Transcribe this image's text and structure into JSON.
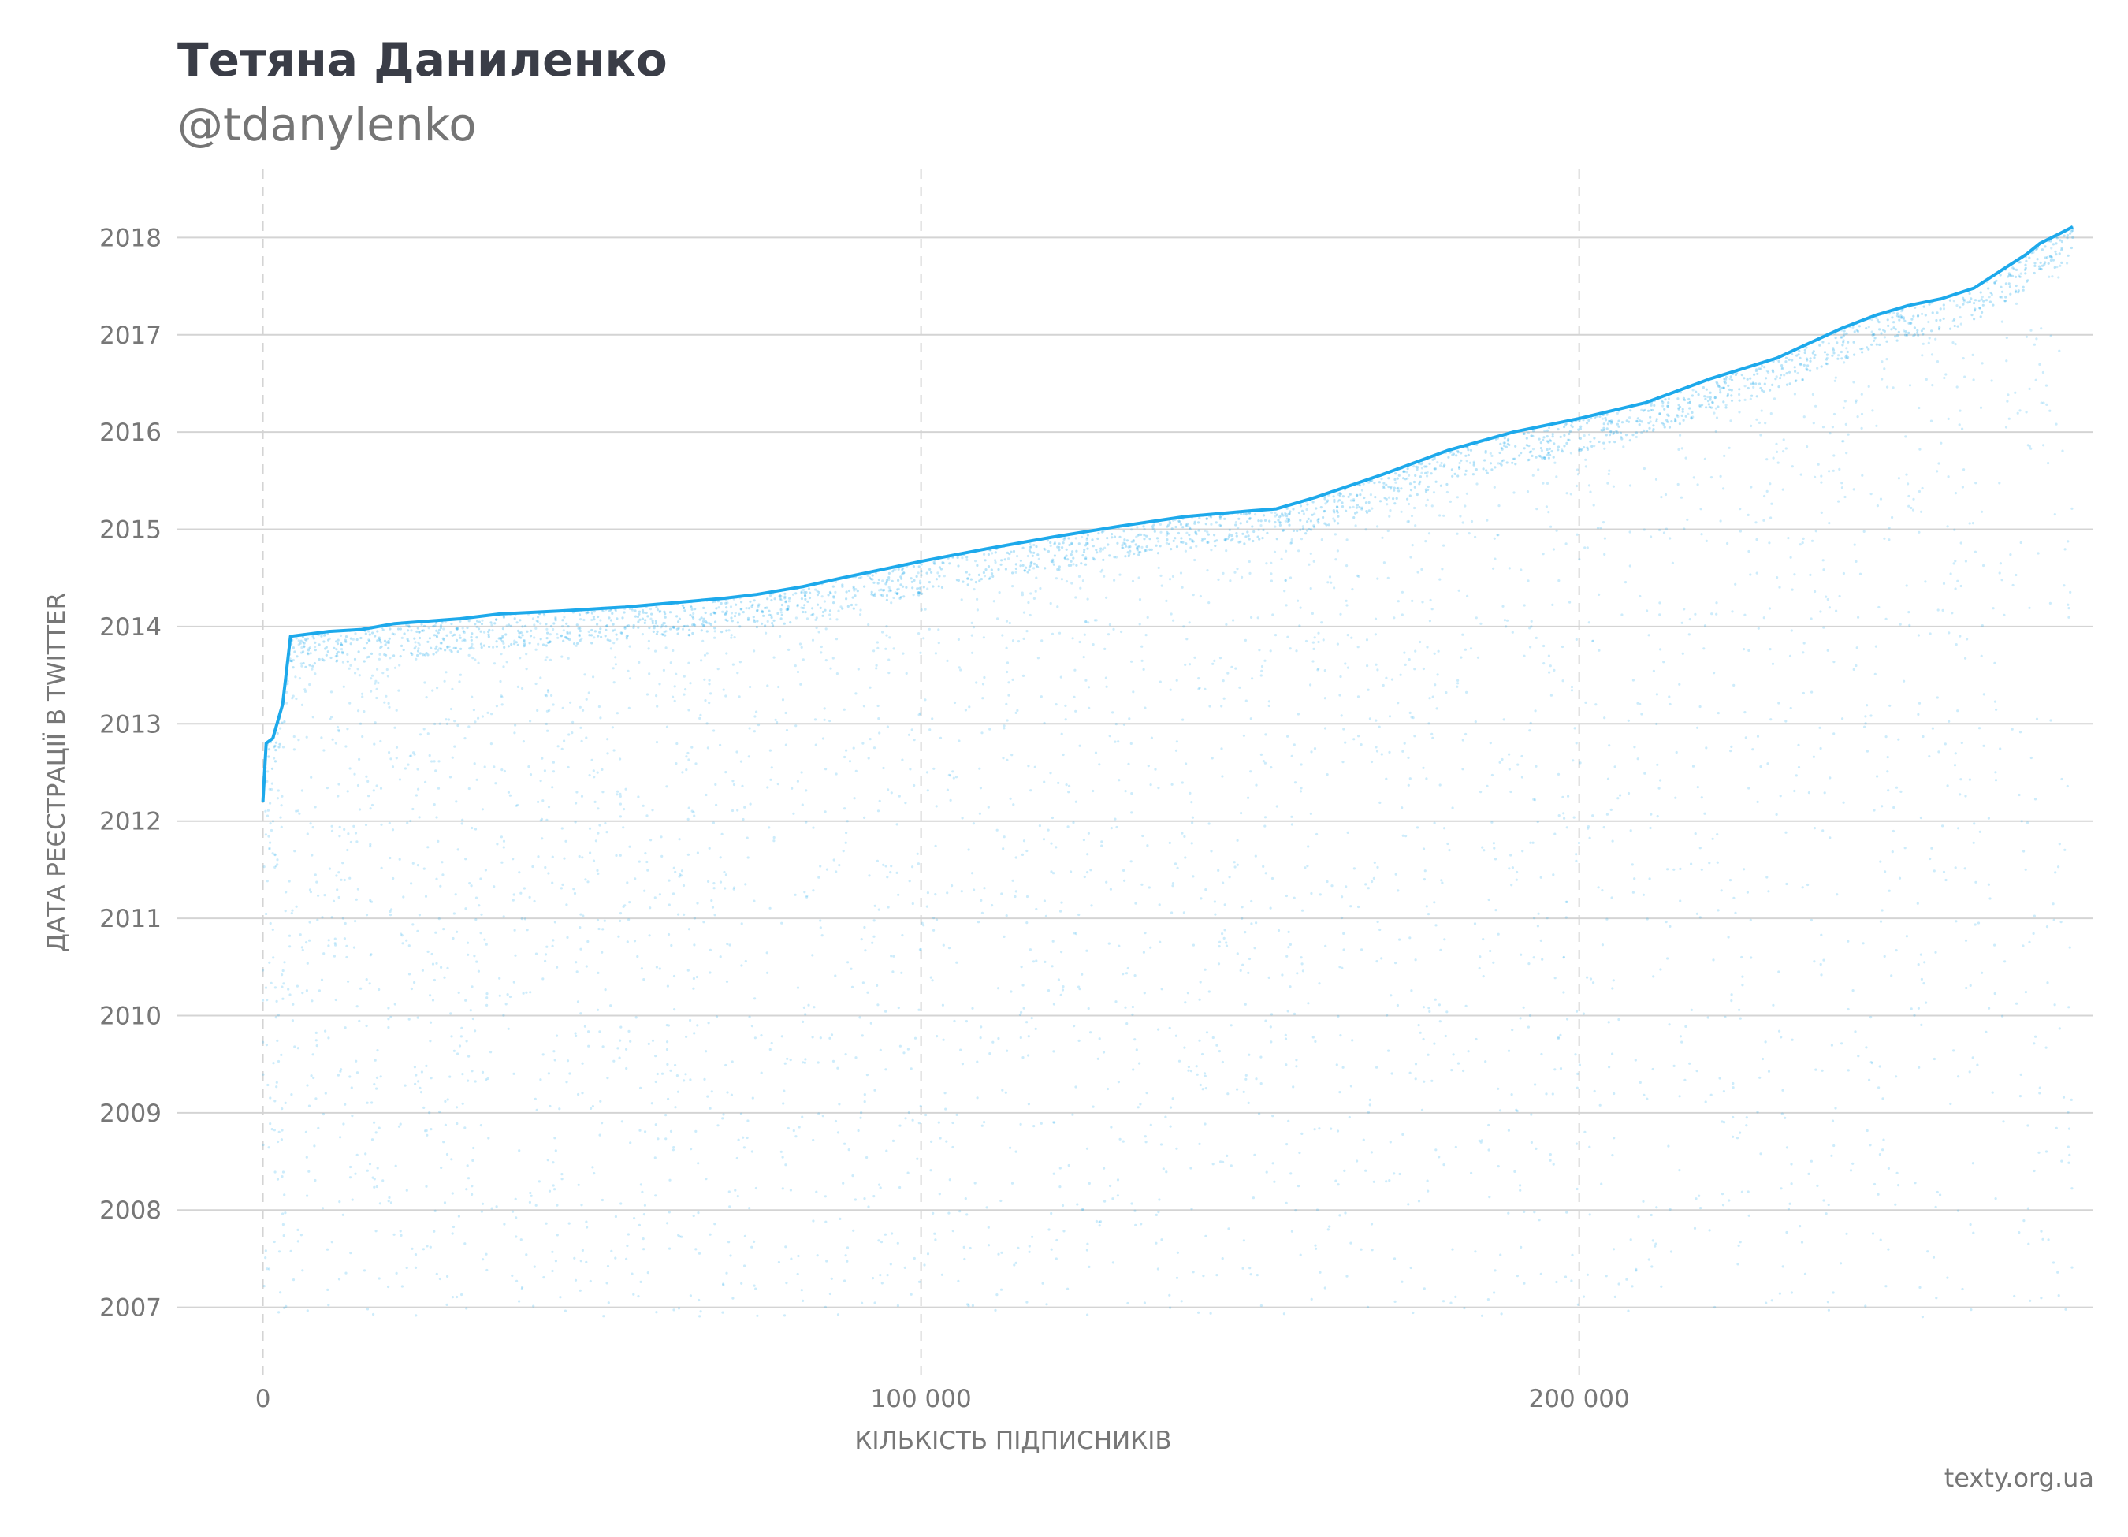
{
  "header": {
    "title": "Тетяна Даниленко",
    "subtitle": "@tdanylenko"
  },
  "footer": {
    "source": "texty.org.ua"
  },
  "colors": {
    "series": "#1da9eb",
    "grid": "#d4d4d4",
    "text": "#777777",
    "title": "#3a3d47"
  },
  "chart_data": {
    "type": "scatter",
    "xlabel": "КІЛЬКІСТЬ ПІДПИСНИКІВ",
    "ylabel": "ДАТА РЕЄСТРАЦІЇ В TWITTER",
    "xlim": [
      -13000,
      278000
    ],
    "ylim": [
      2006.3,
      2018.7
    ],
    "x_ticks": [
      0,
      100000,
      200000
    ],
    "x_tick_labels": [
      "0",
      "100 000",
      "200 000"
    ],
    "y_ticks": [
      2007,
      2008,
      2009,
      2010,
      2011,
      2012,
      2013,
      2014,
      2015,
      2016,
      2017,
      2018
    ],
    "y_tick_labels": [
      "2007",
      "2008",
      "2009",
      "2010",
      "2011",
      "2012",
      "2013",
      "2014",
      "2015",
      "2016",
      "2017",
      "2018"
    ],
    "grid": {
      "horizontal": "solid",
      "vertical": "dashed"
    },
    "frontier": {
      "x": [
        0,
        500,
        1500,
        3000,
        4200,
        10000,
        15000,
        20000,
        30000,
        36000,
        45000,
        55000,
        70000,
        75000,
        82000,
        88000,
        95000,
        100000,
        110000,
        120000,
        130000,
        140000,
        150000,
        154000,
        160000,
        170000,
        180000,
        190000,
        200000,
        210000,
        220000,
        230000,
        240000,
        245000,
        250000,
        255000,
        260000,
        265000,
        268000,
        270000,
        273000,
        275000
      ],
      "y": [
        2012.2,
        2012.8,
        2012.85,
        2013.2,
        2013.9,
        2013.95,
        2013.97,
        2014.03,
        2014.08,
        2014.13,
        2014.16,
        2014.2,
        2014.29,
        2014.33,
        2014.41,
        2014.5,
        2014.6,
        2014.67,
        2014.8,
        2014.92,
        2015.03,
        2015.13,
        2015.19,
        2015.21,
        2015.33,
        2015.56,
        2015.81,
        2016.0,
        2016.14,
        2016.3,
        2016.55,
        2016.76,
        2017.07,
        2017.2,
        2017.3,
        2017.37,
        2017.48,
        2017.7,
        2017.83,
        2017.94,
        2018.04,
        2018.11
      ]
    }
  }
}
